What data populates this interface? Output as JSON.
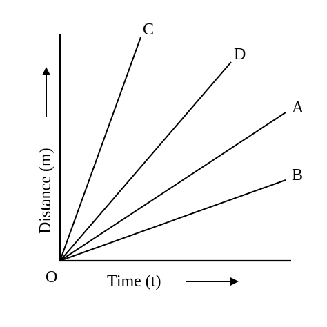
{
  "chart_data": {
    "type": "line",
    "xlabel": "Time (t)",
    "ylabel": "Distance (m)",
    "origin_label": "O",
    "xlim": [
      0,
      335
    ],
    "ylim": [
      0,
      330
    ],
    "series": [
      {
        "name": "C",
        "points": [
          [
            0,
            0
          ],
          [
            117,
            324
          ]
        ]
      },
      {
        "name": "D",
        "points": [
          [
            0,
            0
          ],
          [
            248,
            288
          ]
        ]
      },
      {
        "name": "A",
        "points": [
          [
            0,
            0
          ],
          [
            327,
            215
          ]
        ]
      },
      {
        "name": "B",
        "points": [
          [
            0,
            0
          ],
          [
            327,
            117
          ]
        ]
      }
    ],
    "grid": false
  }
}
